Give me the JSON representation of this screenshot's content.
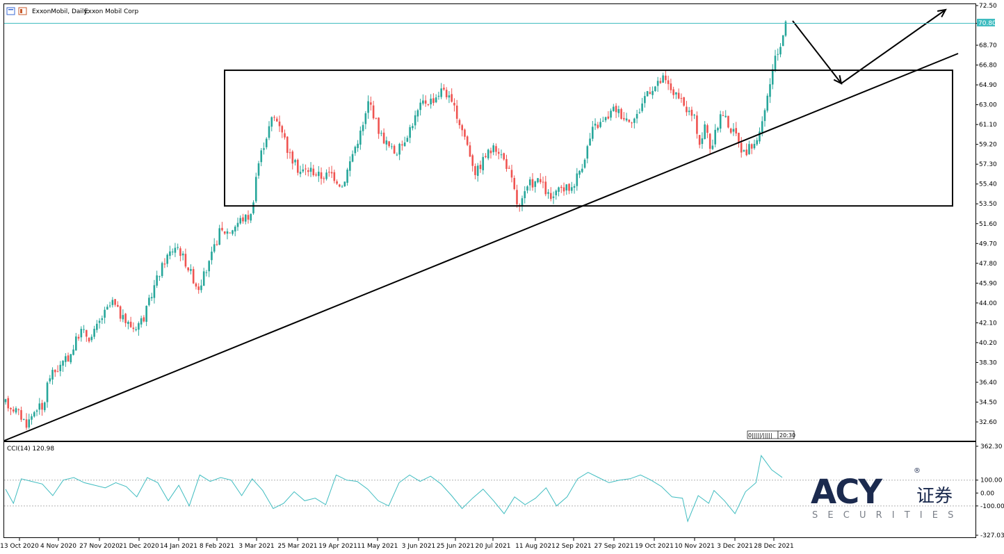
{
  "window": {
    "symbol_label": "ExxonMobil, Daily:",
    "symbol_desc": "Exxon Mobil Corp",
    "current_price": "70.80",
    "timeframe_flags": "0|||||/|||||",
    "countdown": "20:30"
  },
  "indicator": {
    "label": "CCI(14) 120.98",
    "levels": [
      "362.30",
      "100.00",
      "0.00",
      "-100.00",
      "-327.03"
    ]
  },
  "logo": {
    "letters": "ACY",
    "chinese": "证券",
    "securities": "S E C U R I T I E S",
    "reg_mark": "®"
  },
  "colors": {
    "bull": "#26a69a",
    "bear": "#ef5350",
    "price_line": "#3fbcc0",
    "cci_line": "#3fbcc0",
    "logo_navy": "#1b2a4e",
    "logo_grey": "#7a7f88"
  },
  "chart_data": {
    "type": "candlestick",
    "title": "ExxonMobil, Daily: Exxon Mobil Corp",
    "y_ticks": [
      "72.50",
      "70.80",
      "68.70",
      "66.80",
      "64.90",
      "63.00",
      "61.10",
      "59.20",
      "57.30",
      "55.40",
      "53.50",
      "51.60",
      "49.70",
      "47.80",
      "45.90",
      "44.00",
      "42.10",
      "40.20",
      "38.30",
      "36.40",
      "34.50",
      "32.60"
    ],
    "ylim": [
      30.7,
      72.5
    ],
    "x_ticks": [
      "13 Oct 2020",
      "4 Nov 2020",
      "27 Nov 2020",
      "21 Dec 2020",
      "14 Jan 2021",
      "8 Feb 2021",
      "3 Mar 2021",
      "25 Mar 2021",
      "19 Apr 2021",
      "11 May 2021",
      "3 Jun 2021",
      "25 Jun 2021",
      "20 Jul 2021",
      "11 Aug 2021",
      "2 Sep 2021",
      "27 Sep 2021",
      "19 Oct 2021",
      "10 Nov 2021",
      "3 Dec 2021",
      "28 Dec 2021"
    ],
    "price_path": [
      [
        0,
        34.4
      ],
      [
        4,
        33.7
      ],
      [
        8,
        32.4
      ],
      [
        12,
        34.2
      ],
      [
        14,
        33.6
      ],
      [
        16,
        36.8
      ],
      [
        20,
        37.8
      ],
      [
        24,
        38.9
      ],
      [
        28,
        41.4
      ],
      [
        32,
        40.6
      ],
      [
        36,
        42.6
      ],
      [
        40,
        44.1
      ],
      [
        44,
        42.4
      ],
      [
        48,
        41.6
      ],
      [
        52,
        42.7
      ],
      [
        56,
        45.9
      ],
      [
        60,
        48.3
      ],
      [
        64,
        49.6
      ],
      [
        68,
        47.6
      ],
      [
        72,
        45.4
      ],
      [
        76,
        47.6
      ],
      [
        80,
        50.8
      ],
      [
        84,
        50.9
      ],
      [
        88,
        52.0
      ],
      [
        92,
        52.4
      ],
      [
        94,
        56.7
      ],
      [
        96,
        58.7
      ],
      [
        100,
        61.9
      ],
      [
        103,
        61.1
      ],
      [
        106,
        58.3
      ],
      [
        110,
        56.6
      ],
      [
        114,
        56.8
      ],
      [
        118,
        56.1
      ],
      [
        122,
        56.4
      ],
      [
        126,
        55.2
      ],
      [
        130,
        58.4
      ],
      [
        134,
        61.1
      ],
      [
        136,
        63.5
      ],
      [
        140,
        60.3
      ],
      [
        144,
        58.8
      ],
      [
        146,
        58.4
      ],
      [
        148,
        59.0
      ],
      [
        152,
        61.1
      ],
      [
        156,
        63.2
      ],
      [
        160,
        63.5
      ],
      [
        164,
        64.6
      ],
      [
        168,
        62.5
      ],
      [
        172,
        59.9
      ],
      [
        176,
        56.4
      ],
      [
        180,
        58.3
      ],
      [
        184,
        58.9
      ],
      [
        188,
        57.0
      ],
      [
        190,
        55.2
      ],
      [
        192,
        52.9
      ],
      [
        196,
        55.4
      ],
      [
        200,
        55.7
      ],
      [
        204,
        53.9
      ],
      [
        208,
        54.9
      ],
      [
        212,
        55.1
      ],
      [
        216,
        57.4
      ],
      [
        220,
        60.8
      ],
      [
        224,
        61.4
      ],
      [
        228,
        62.7
      ],
      [
        232,
        61.7
      ],
      [
        236,
        61.7
      ],
      [
        240,
        64.3
      ],
      [
        244,
        64.9
      ],
      [
        246,
        65.5
      ],
      [
        250,
        64.2
      ],
      [
        254,
        62.8
      ],
      [
        258,
        61.6
      ],
      [
        260,
        59.1
      ],
      [
        262,
        61.2
      ],
      [
        264,
        58.6
      ],
      [
        268,
        62.4
      ],
      [
        272,
        60.4
      ],
      [
        274,
        60.0
      ],
      [
        276,
        58.3
      ],
      [
        280,
        59.2
      ],
      [
        283,
        60.7
      ],
      [
        286,
        64.9
      ],
      [
        288,
        67.2
      ],
      [
        290,
        68.7
      ],
      [
        292,
        71.0
      ]
    ],
    "price_path_xmax": 292,
    "cci": [
      [
        0,
        30
      ],
      [
        3,
        -80
      ],
      [
        6,
        110
      ],
      [
        10,
        90
      ],
      [
        14,
        70
      ],
      [
        18,
        -20
      ],
      [
        22,
        100
      ],
      [
        26,
        120
      ],
      [
        30,
        80
      ],
      [
        34,
        60
      ],
      [
        38,
        40
      ],
      [
        42,
        80
      ],
      [
        46,
        50
      ],
      [
        50,
        -30
      ],
      [
        54,
        120
      ],
      [
        58,
        80
      ],
      [
        62,
        -60
      ],
      [
        66,
        60
      ],
      [
        70,
        -100
      ],
      [
        74,
        140
      ],
      [
        78,
        90
      ],
      [
        82,
        120
      ],
      [
        86,
        100
      ],
      [
        90,
        -20
      ],
      [
        94,
        110
      ],
      [
        98,
        20
      ],
      [
        102,
        -120
      ],
      [
        106,
        -80
      ],
      [
        110,
        10
      ],
      [
        114,
        -60
      ],
      [
        118,
        -40
      ],
      [
        122,
        -90
      ],
      [
        126,
        140
      ],
      [
        130,
        100
      ],
      [
        134,
        90
      ],
      [
        138,
        30
      ],
      [
        142,
        -60
      ],
      [
        146,
        -100
      ],
      [
        150,
        80
      ],
      [
        154,
        140
      ],
      [
        158,
        90
      ],
      [
        162,
        130
      ],
      [
        166,
        70
      ],
      [
        170,
        -20
      ],
      [
        174,
        -120
      ],
      [
        178,
        -40
      ],
      [
        182,
        30
      ],
      [
        186,
        -60
      ],
      [
        190,
        -160
      ],
      [
        194,
        -30
      ],
      [
        198,
        -90
      ],
      [
        202,
        -40
      ],
      [
        206,
        40
      ],
      [
        210,
        -100
      ],
      [
        214,
        -30
      ],
      [
        218,
        110
      ],
      [
        222,
        160
      ],
      [
        226,
        120
      ],
      [
        230,
        80
      ],
      [
        234,
        100
      ],
      [
        238,
        110
      ],
      [
        242,
        140
      ],
      [
        246,
        100
      ],
      [
        250,
        50
      ],
      [
        254,
        -30
      ],
      [
        258,
        -40
      ],
      [
        260,
        -220
      ],
      [
        264,
        -20
      ],
      [
        268,
        -80
      ],
      [
        270,
        20
      ],
      [
        274,
        -60
      ],
      [
        278,
        -160
      ],
      [
        282,
        10
      ],
      [
        286,
        80
      ],
      [
        288,
        290
      ],
      [
        292,
        180
      ],
      [
        296,
        121
      ]
    ],
    "trendline": [
      [
        6,
        634
      ],
      [
        1378,
        77
      ]
    ],
    "range_box": {
      "low": 53.3,
      "high": 66.3
    },
    "projection": [
      [
        1140,
        30
      ],
      [
        1210,
        120
      ],
      [
        1360,
        14
      ]
    ]
  }
}
